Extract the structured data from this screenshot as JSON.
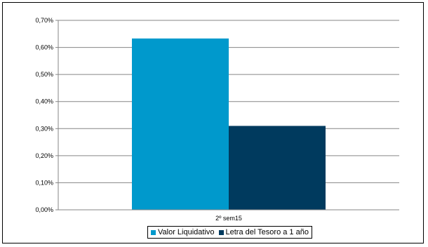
{
  "chart_data": {
    "type": "bar",
    "categories": [
      "2º sem15"
    ],
    "series": [
      {
        "name": "Valor Liquidativo",
        "values": [
          0.633
        ],
        "color": "#0099cc"
      },
      {
        "name": "Letra del Tesoro a 1 año",
        "values": [
          0.31
        ],
        "color": "#003a5e"
      }
    ],
    "y_ticks": [
      "0,00%",
      "0,10%",
      "0,20%",
      "0,30%",
      "0,40%",
      "0,50%",
      "0,60%",
      "0,70%"
    ],
    "ylim": [
      0,
      0.7
    ],
    "grid": true,
    "legend_position": "bottom",
    "title": "",
    "xlabel": "",
    "ylabel": ""
  }
}
